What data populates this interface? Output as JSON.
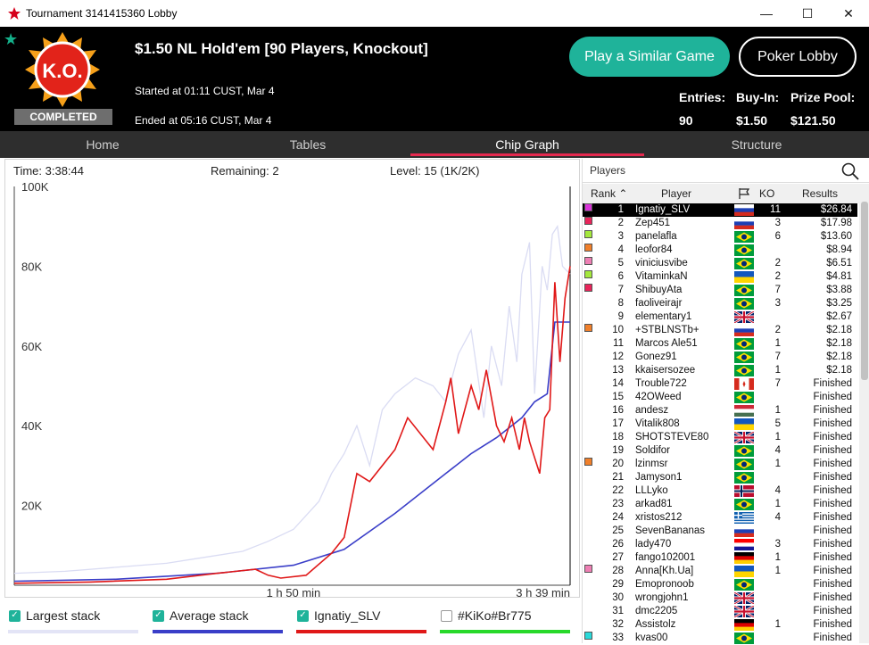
{
  "window": {
    "title": "Tournament 3141415360 Lobby"
  },
  "header": {
    "logo_text": "K.O.",
    "status_badge": "COMPLETED",
    "game_name": "$1.50 NL Hold'em [90 Players, Knockout]",
    "started": "Started at 01:11 CUST, Mar 4",
    "ended": "Ended at 05:16 CUST, Mar 4",
    "play_similar": "Play a Similar Game",
    "poker_lobby": "Poker Lobby",
    "entries_label": "Entries:",
    "entries_value": "90",
    "buyin_label": "Buy-In:",
    "buyin_value": "$1.50",
    "prizepool_label": "Prize Pool:",
    "prizepool_value": "$121.50"
  },
  "tabs": [
    {
      "label": "Home"
    },
    {
      "label": "Tables"
    },
    {
      "label": "Chip Graph",
      "active": true
    },
    {
      "label": "Structure"
    }
  ],
  "chart_info": {
    "time": "Time: 3:38:44",
    "remaining": "Remaining: 2",
    "level": "Level: 15 (1K/2K)"
  },
  "chart_data": {
    "type": "line",
    "ytick_labels": [
      "100K",
      "80K",
      "60K",
      "40K",
      "20K"
    ],
    "yticks": [
      100000,
      80000,
      60000,
      40000,
      20000
    ],
    "xtick_labels": [
      "1 h 50 min",
      "3 h 39 min"
    ],
    "ylim": [
      0,
      100000
    ],
    "xlim_minutes": [
      0,
      219
    ],
    "xticks_minutes": [
      110,
      219
    ],
    "series": [
      {
        "name": "Largest stack",
        "color": "#dadcf3",
        "x": [
          0,
          20,
          40,
          60,
          75,
          90,
          100,
          110,
          120,
          125,
          130,
          135,
          140,
          145,
          150,
          158,
          165,
          170,
          175,
          180,
          185,
          188,
          192,
          195,
          198,
          200,
          203,
          205,
          208,
          210,
          212,
          214,
          216,
          219
        ],
        "y": [
          3000,
          3500,
          4500,
          5500,
          7000,
          8500,
          11000,
          14000,
          21000,
          28000,
          33000,
          40000,
          30000,
          44000,
          48000,
          52000,
          50000,
          46000,
          58000,
          64000,
          42000,
          60000,
          50000,
          70000,
          56000,
          78000,
          86000,
          48000,
          80000,
          74000,
          88000,
          90000,
          80000,
          78000
        ]
      },
      {
        "name": "Average stack",
        "color": "#3a3ec8",
        "x": [
          0,
          40,
          80,
          110,
          130,
          150,
          170,
          180,
          190,
          200,
          205,
          210,
          213,
          216,
          219
        ],
        "y": [
          1000,
          1500,
          3000,
          5000,
          9000,
          18000,
          28000,
          33000,
          37000,
          42000,
          46000,
          48000,
          66000,
          66000,
          66000
        ]
      },
      {
        "name": "Ignatiy_SLV",
        "color": "#e01818",
        "x": [
          0,
          30,
          60,
          80,
          95,
          100,
          105,
          115,
          125,
          130,
          135,
          140,
          150,
          155,
          165,
          170,
          172,
          175,
          180,
          183,
          186,
          190,
          193,
          196,
          199,
          201,
          203,
          205,
          207,
          209,
          211,
          213,
          215,
          217,
          219
        ],
        "y": [
          500,
          800,
          1500,
          3000,
          4000,
          2500,
          1800,
          2500,
          8000,
          12000,
          28000,
          26000,
          34000,
          42000,
          34000,
          46000,
          52000,
          38000,
          50000,
          44000,
          54000,
          40000,
          36000,
          42000,
          34000,
          42000,
          36000,
          32000,
          28000,
          42000,
          44000,
          76000,
          56000,
          72000,
          80000
        ]
      },
      {
        "name": "#KiKo#Br775",
        "color": "#28d92a",
        "x": [],
        "y": []
      }
    ]
  },
  "legend": [
    {
      "label": "Largest stack",
      "checked": true,
      "color": "#e3e4f6"
    },
    {
      "label": "Average stack",
      "checked": true,
      "color": "#3a3ec8"
    },
    {
      "label": "Ignatiy_SLV",
      "checked": true,
      "color": "#e01818"
    },
    {
      "label": "#KiKo#Br775",
      "checked": false,
      "color": "#28d92a"
    }
  ],
  "players_panel": {
    "title": "Players",
    "columns": {
      "rank": "Rank",
      "player": "Player",
      "ko": "KO",
      "results": "Results"
    },
    "rows": [
      {
        "rank": "1",
        "player": "Ignatiy_SLV",
        "flag": "ru",
        "ko": "11",
        "result": "$26.84",
        "color": "#d933d9",
        "selected": true
      },
      {
        "rank": "2",
        "player": "Zep451",
        "flag": "ru",
        "ko": "3",
        "result": "$17.98",
        "color": "#e8245a"
      },
      {
        "rank": "3",
        "player": "panelafla",
        "flag": "br",
        "ko": "6",
        "result": "$13.60",
        "color": "#a4e83c"
      },
      {
        "rank": "4",
        "player": "leofor84",
        "flag": "br",
        "ko": "",
        "result": "$8.94",
        "color": "#f07f2a"
      },
      {
        "rank": "5",
        "player": "viniciusvibe",
        "flag": "br",
        "ko": "2",
        "result": "$6.51",
        "color": "#ee7fb4"
      },
      {
        "rank": "6",
        "player": "VitaminkaN",
        "flag": "ua",
        "ko": "2",
        "result": "$4.81",
        "color": "#a4e83c"
      },
      {
        "rank": "7",
        "player": "ShibuyAta",
        "flag": "br",
        "ko": "7",
        "result": "$3.88",
        "color": "#e8245a"
      },
      {
        "rank": "8",
        "player": "faoliveirajr",
        "flag": "br",
        "ko": "3",
        "result": "$3.25",
        "color": ""
      },
      {
        "rank": "9",
        "player": "elementary1",
        "flag": "gb",
        "ko": "",
        "result": "$2.67",
        "color": ""
      },
      {
        "rank": "10",
        "player": "+STBLNSTb+",
        "flag": "ru",
        "ko": "2",
        "result": "$2.18",
        "color": "#f07f2a"
      },
      {
        "rank": "11",
        "player": "Marcos Ale51",
        "flag": "br",
        "ko": "1",
        "result": "$2.18",
        "color": ""
      },
      {
        "rank": "12",
        "player": "Gonez91",
        "flag": "br",
        "ko": "7",
        "result": "$2.18",
        "color": ""
      },
      {
        "rank": "13",
        "player": "kkaisersozee",
        "flag": "br",
        "ko": "1",
        "result": "$2.18",
        "color": ""
      },
      {
        "rank": "14",
        "player": "Trouble722",
        "flag": "ca",
        "ko": "7",
        "result": "Finished",
        "color": ""
      },
      {
        "rank": "15",
        "player": "42OWeed",
        "flag": "br",
        "ko": "",
        "result": "Finished",
        "color": ""
      },
      {
        "rank": "16",
        "player": "andesz",
        "flag": "hu",
        "ko": "1",
        "result": "Finished",
        "color": ""
      },
      {
        "rank": "17",
        "player": "Vitalik808",
        "flag": "ua",
        "ko": "5",
        "result": "Finished",
        "color": ""
      },
      {
        "rank": "18",
        "player": "SHOTSTEVE80",
        "flag": "gb",
        "ko": "1",
        "result": "Finished",
        "color": ""
      },
      {
        "rank": "19",
        "player": "Soldifor",
        "flag": "br",
        "ko": "4",
        "result": "Finished",
        "color": ""
      },
      {
        "rank": "20",
        "player": "lzinmsr",
        "flag": "br",
        "ko": "1",
        "result": "Finished",
        "color": "#f07f2a"
      },
      {
        "rank": "21",
        "player": "Jamyson1",
        "flag": "br",
        "ko": "",
        "result": "Finished",
        "color": ""
      },
      {
        "rank": "22",
        "player": "LLLyko",
        "flag": "no",
        "ko": "4",
        "result": "Finished",
        "color": ""
      },
      {
        "rank": "23",
        "player": "arkad81",
        "flag": "br",
        "ko": "1",
        "result": "Finished",
        "color": ""
      },
      {
        "rank": "24",
        "player": "xristos212",
        "flag": "gr",
        "ko": "4",
        "result": "Finished",
        "color": ""
      },
      {
        "rank": "25",
        "player": "SevenBananas",
        "flag": "ru",
        "ko": "",
        "result": "Finished",
        "color": ""
      },
      {
        "rank": "26",
        "player": "lady470",
        "flag": "hr",
        "ko": "3",
        "result": "Finished",
        "color": ""
      },
      {
        "rank": "27",
        "player": "fango102001",
        "flag": "de",
        "ko": "1",
        "result": "Finished",
        "color": ""
      },
      {
        "rank": "28",
        "player": "Anna[Kh.Ua]",
        "flag": "ua",
        "ko": "1",
        "result": "Finished",
        "color": "#ee7fb4"
      },
      {
        "rank": "29",
        "player": "Emopronoob",
        "flag": "br",
        "ko": "",
        "result": "Finished",
        "color": ""
      },
      {
        "rank": "30",
        "player": "wrongjohn1",
        "flag": "gb",
        "ko": "",
        "result": "Finished",
        "color": ""
      },
      {
        "rank": "31",
        "player": "dmc2205",
        "flag": "gb",
        "ko": "",
        "result": "Finished",
        "color": ""
      },
      {
        "rank": "32",
        "player": "Assistolz",
        "flag": "de",
        "ko": "1",
        "result": "Finished",
        "color": ""
      },
      {
        "rank": "33",
        "player": "kvas00",
        "flag": "br",
        "ko": "",
        "result": "Finished",
        "color": "#2ad9d9"
      }
    ]
  }
}
